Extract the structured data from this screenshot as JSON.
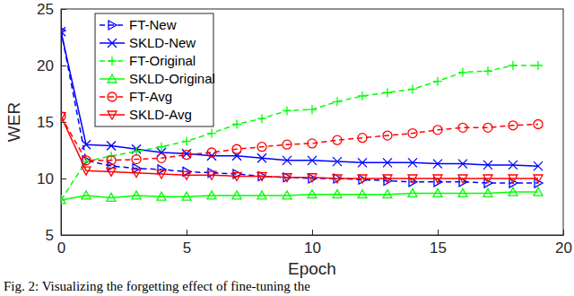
{
  "chart_data": {
    "type": "line",
    "x_label": "Epoch",
    "y_label": "WER",
    "caption": "Fig. 2: Visualizing the forgetting effect of fine-tuning the",
    "x": [
      0,
      1,
      2,
      3,
      4,
      5,
      6,
      7,
      8,
      9,
      10,
      11,
      12,
      13,
      14,
      15,
      16,
      17,
      18,
      19
    ],
    "xlim": [
      0,
      20
    ],
    "xticks": [
      0,
      5,
      10,
      15,
      20
    ],
    "ylim": [
      5,
      25
    ],
    "yticks": [
      5,
      10,
      15,
      20,
      25
    ],
    "grid": false,
    "legend": "upper left",
    "series": [
      {
        "name": "FT-New",
        "color": "#0000ff",
        "marker": "triangle-right",
        "line_style": "dashed",
        "values": [
          23.1,
          11.6,
          11.1,
          10.9,
          10.8,
          10.6,
          10.5,
          10.4,
          10.2,
          10.1,
          10.0,
          10.0,
          9.9,
          9.8,
          9.7,
          9.7,
          9.7,
          9.6,
          9.6,
          9.6
        ]
      },
      {
        "name": "SKLD-New",
        "color": "#0000ff",
        "marker": "x",
        "line_style": "solid",
        "values": [
          23.0,
          13.0,
          12.9,
          12.6,
          12.3,
          12.2,
          12.0,
          12.0,
          11.8,
          11.6,
          11.6,
          11.5,
          11.4,
          11.4,
          11.4,
          11.3,
          11.3,
          11.2,
          11.2,
          11.1
        ]
      },
      {
        "name": "FT-Original",
        "color": "#00ff00",
        "marker": "plus",
        "line_style": "dashed",
        "values": [
          8.1,
          11.5,
          12.0,
          12.4,
          12.8,
          13.3,
          14.0,
          14.8,
          15.3,
          16.0,
          16.1,
          16.8,
          17.3,
          17.6,
          17.9,
          18.6,
          19.4,
          19.5,
          20.0,
          20.0
        ]
      },
      {
        "name": "SKLD-Original",
        "color": "#00ff00",
        "marker": "triangle-up",
        "line_style": "solid",
        "values": [
          8.1,
          8.5,
          8.3,
          8.5,
          8.4,
          8.4,
          8.5,
          8.5,
          8.5,
          8.5,
          8.6,
          8.6,
          8.6,
          8.6,
          8.7,
          8.7,
          8.7,
          8.7,
          8.8,
          8.8
        ]
      },
      {
        "name": "FT-Avg",
        "color": "#ff0000",
        "marker": "circle",
        "line_style": "dashed",
        "values": [
          15.5,
          11.6,
          11.6,
          11.7,
          11.8,
          12.1,
          12.3,
          12.6,
          12.8,
          13.0,
          13.1,
          13.4,
          13.6,
          13.8,
          14.0,
          14.3,
          14.5,
          14.5,
          14.7,
          14.8
        ]
      },
      {
        "name": "SKLD-Avg",
        "color": "#ff0000",
        "marker": "triangle-down",
        "line_style": "solid",
        "values": [
          15.5,
          10.7,
          10.6,
          10.5,
          10.4,
          10.3,
          10.3,
          10.2,
          10.2,
          10.1,
          10.1,
          10.0,
          10.0,
          10.0,
          10.0,
          10.0,
          10.0,
          10.0,
          10.0,
          10.0
        ]
      }
    ]
  }
}
